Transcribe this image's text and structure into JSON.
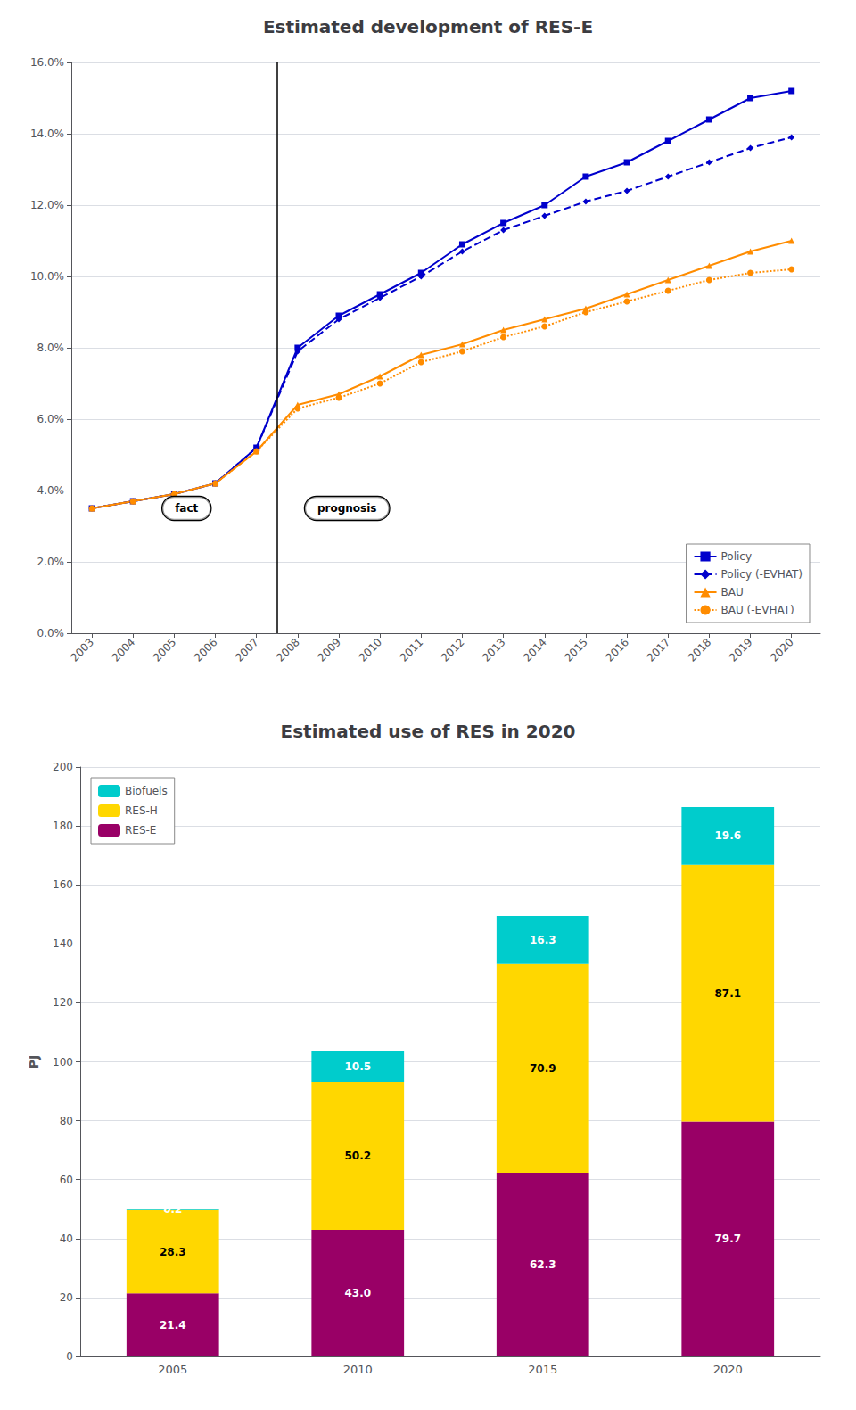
{
  "chart_data": [
    {
      "type": "line",
      "title": "Estimated development of RES-E",
      "x": [
        2003,
        2004,
        2005,
        2006,
        2007,
        2008,
        2009,
        2010,
        2011,
        2012,
        2013,
        2014,
        2015,
        2016,
        2017,
        2018,
        2019,
        2020
      ],
      "series": [
        {
          "name": "Policy",
          "color": "#0000CC",
          "marker": "square",
          "line_style": "solid",
          "values": [
            3.5,
            3.7,
            3.9,
            4.2,
            5.2,
            8.0,
            8.9,
            9.5,
            10.1,
            10.9,
            11.5,
            12.0,
            12.8,
            13.2,
            13.8,
            14.4,
            15.0,
            15.2
          ]
        },
        {
          "name": "Policy (-EVHAT)",
          "color": "#0000CC",
          "marker": "diamond",
          "line_style": "dashed",
          "values": [
            3.5,
            3.7,
            3.9,
            4.2,
            5.2,
            7.9,
            8.8,
            9.4,
            10.0,
            10.7,
            11.3,
            11.7,
            12.1,
            12.4,
            12.8,
            13.2,
            13.6,
            13.9
          ]
        },
        {
          "name": "BAU",
          "color": "#FF8C00",
          "marker": "triangle",
          "line_style": "solid",
          "values": [
            3.5,
            3.7,
            3.9,
            4.2,
            5.1,
            6.4,
            6.7,
            7.2,
            7.8,
            8.1,
            8.5,
            8.8,
            9.1,
            9.5,
            9.9,
            10.3,
            10.7,
            11.0
          ]
        },
        {
          "name": "BAU (-EVHAT)",
          "color": "#FF8C00",
          "marker": "circle",
          "line_style": "dotted",
          "values": [
            3.5,
            3.7,
            3.9,
            4.2,
            5.1,
            6.3,
            6.6,
            7.0,
            7.6,
            7.9,
            8.3,
            8.6,
            9.0,
            9.3,
            9.6,
            9.9,
            10.1,
            10.2
          ]
        }
      ],
      "xlim": [
        2002.5,
        2020.7
      ],
      "xticks": [
        2003,
        2004,
        2005,
        2006,
        2007,
        2008,
        2009,
        2010,
        2011,
        2012,
        2013,
        2014,
        2015,
        2016,
        2017,
        2018,
        2019,
        2020
      ],
      "ylim": [
        0.0,
        16.0
      ],
      "yticks": [
        {
          "value": 0.0,
          "label": "0.0%"
        },
        {
          "value": 2.0,
          "label": "2.0%"
        },
        {
          "value": 4.0,
          "label": "4.0%"
        },
        {
          "value": 6.0,
          "label": "6.0%"
        },
        {
          "value": 8.0,
          "label": "8.0%"
        },
        {
          "value": 10.0,
          "label": "10.0%"
        },
        {
          "value": 12.0,
          "label": "12.0%"
        },
        {
          "value": 14.0,
          "label": "14.0%"
        },
        {
          "value": 16.0,
          "label": "16.0%"
        }
      ],
      "vlines": [
        2007.5
      ],
      "annotations": [
        {
          "text": "fact",
          "x": 2005.3,
          "y": 3.5
        },
        {
          "text": "prognosis",
          "x": 2009.2,
          "y": 3.5
        }
      ],
      "grid": true,
      "legend": "lower right"
    },
    {
      "type": "bar",
      "title": "Estimated use of RES in 2020",
      "categories": [
        "2005",
        "2010",
        "2015",
        "2020"
      ],
      "series": [
        {
          "name": "RES-E",
          "color": "#990066",
          "values": [
            21.4,
            43.0,
            62.3,
            79.7
          ],
          "value_labels": [
            "21.4",
            "43.0",
            "62.3",
            "79.7"
          ]
        },
        {
          "name": "RES-H",
          "color": "#FFD700",
          "values": [
            28.3,
            50.2,
            70.9,
            87.1
          ]
        },
        {
          "name": "Biofuels",
          "color": "#00CCCC",
          "values": [
            0.2,
            10.5,
            16.3,
            19.6
          ]
        }
      ],
      "stacked": true,
      "data_labels": true,
      "ylabel": "PJ",
      "ylim": [
        0,
        200
      ],
      "yticks": [
        0,
        20,
        40,
        60,
        80,
        100,
        120,
        140,
        160,
        180,
        200
      ],
      "grid": true,
      "legend": "upper left"
    }
  ]
}
